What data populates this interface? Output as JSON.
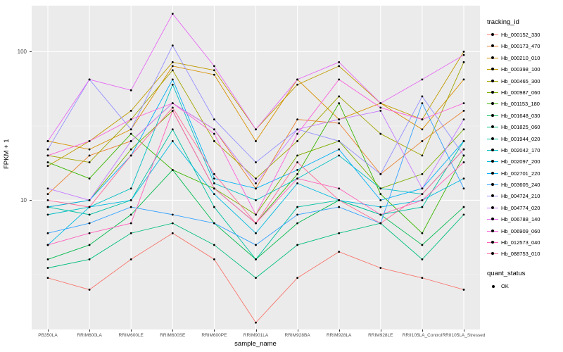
{
  "figure": {
    "ylabel": "FPKM + 1",
    "xlabel": "sample_name",
    "legend_title": "tracking_id",
    "legend2_title": "quant_status",
    "quant_status_label": "OK"
  },
  "chart_data": {
    "type": "line",
    "title": "",
    "xlabel": "sample_name",
    "ylabel": "FPKM + 1",
    "yscale": "log10",
    "yticks": [
      10,
      100
    ],
    "ylog_range": [
      0.13,
      2.31
    ],
    "grid": true,
    "legend_position": "right",
    "panel_bg": "#EBEBEB",
    "grid_major_color": "#FFFFFF",
    "grid_minor_color": "#F5F5F5",
    "point_color": "#000000",
    "x_categories": [
      "PB350LA",
      "RRIM600LA",
      "RRIM600LE",
      "RRIM600SE",
      "RRIM600PE",
      "RRIM901LA",
      "RRIM928BA",
      "RRIM928LA",
      "RRIM928LE",
      "RRII105LA_Control",
      "RRII105LA_Stressed"
    ],
    "series": [
      {
        "name": "Hb_000152_330",
        "color": "#F8766D",
        "values": [
          3,
          2.5,
          4,
          6,
          4,
          1.5,
          3,
          4.5,
          3.5,
          3,
          2.5
        ]
      },
      {
        "name": "Hb_000173_470",
        "color": "#EA8331",
        "values": [
          11,
          20,
          25,
          45,
          30,
          12,
          35,
          33,
          15,
          25,
          40
        ]
      },
      {
        "name": "Hb_000210_010",
        "color": "#D89000",
        "values": [
          25,
          22,
          30,
          80,
          70,
          25,
          65,
          35,
          45,
          30,
          65
        ]
      },
      {
        "name": "Hb_000398_100",
        "color": "#C09B00",
        "values": [
          17,
          25,
          40,
          85,
          75,
          30,
          60,
          80,
          45,
          35,
          100
        ]
      },
      {
        "name": "Hb_000465_300",
        "color": "#A3A500",
        "values": [
          20,
          18,
          35,
          75,
          25,
          14,
          25,
          50,
          28,
          20,
          85
        ]
      },
      {
        "name": "Hb_000987_060",
        "color": "#7CAE00",
        "values": [
          9,
          10,
          22,
          40,
          12,
          8,
          20,
          25,
          12,
          15,
          30
        ]
      },
      {
        "name": "Hb_001153_180",
        "color": "#39B600",
        "values": [
          18,
          14,
          28,
          16,
          12,
          7,
          15,
          45,
          11,
          6,
          20
        ]
      },
      {
        "name": "Hb_001648_030",
        "color": "#00BB4E",
        "values": [
          4,
          5,
          8,
          16,
          7,
          4,
          7,
          10,
          8,
          5,
          9
        ]
      },
      {
        "name": "Hb_001825_060",
        "color": "#00BF7D",
        "values": [
          3.5,
          4,
          6,
          7,
          5,
          3,
          5,
          6,
          7,
          4,
          8
        ]
      },
      {
        "name": "Hb_001944_020",
        "color": "#00C1A3",
        "values": [
          9,
          8,
          10,
          30,
          9,
          4,
          9,
          10,
          8,
          9,
          25
        ]
      },
      {
        "name": "Hb_002042_170",
        "color": "#00BFC4",
        "values": [
          8,
          9,
          12,
          60,
          13,
          10,
          14,
          20,
          12,
          11,
          22
        ]
      },
      {
        "name": "Hb_002097_200",
        "color": "#00BAE0",
        "values": [
          5,
          9,
          10,
          25,
          11,
          6,
          13,
          10,
          9,
          10,
          14
        ]
      },
      {
        "name": "Hb_002701_220",
        "color": "#00B0F6",
        "values": [
          9,
          10,
          20,
          65,
          14,
          12,
          16,
          22,
          10,
          12,
          25
        ]
      },
      {
        "name": "Hb_003605_240",
        "color": "#35A2FF",
        "values": [
          6,
          7,
          9,
          8,
          7,
          5,
          8,
          9,
          7,
          45,
          12
        ]
      },
      {
        "name": "Hb_004724_210",
        "color": "#9590FF",
        "values": [
          22,
          65,
          30,
          110,
          35,
          18,
          30,
          25,
          15,
          50,
          20
        ]
      },
      {
        "name": "Hb_004774_020",
        "color": "#C77CFF",
        "values": [
          12,
          10,
          25,
          45,
          30,
          13,
          30,
          35,
          40,
          12,
          35
        ]
      },
      {
        "name": "Hb_006788_140",
        "color": "#E76BF3",
        "values": [
          25,
          65,
          55,
          180,
          80,
          30,
          65,
          85,
          45,
          65,
          95
        ]
      },
      {
        "name": "Hb_006909_060",
        "color": "#FA62DB",
        "values": [
          20,
          25,
          35,
          45,
          28,
          8,
          28,
          65,
          42,
          35,
          45
        ]
      },
      {
        "name": "Hb_012573_040",
        "color": "#FF62BC",
        "values": [
          5,
          6,
          7,
          40,
          12,
          7,
          14,
          12,
          8,
          10,
          18
        ]
      },
      {
        "name": "Hb_088753_010",
        "color": "#FF6A98",
        "values": [
          10,
          9,
          20,
          42,
          15,
          7,
          18,
          10,
          7,
          11,
          22
        ]
      }
    ]
  }
}
